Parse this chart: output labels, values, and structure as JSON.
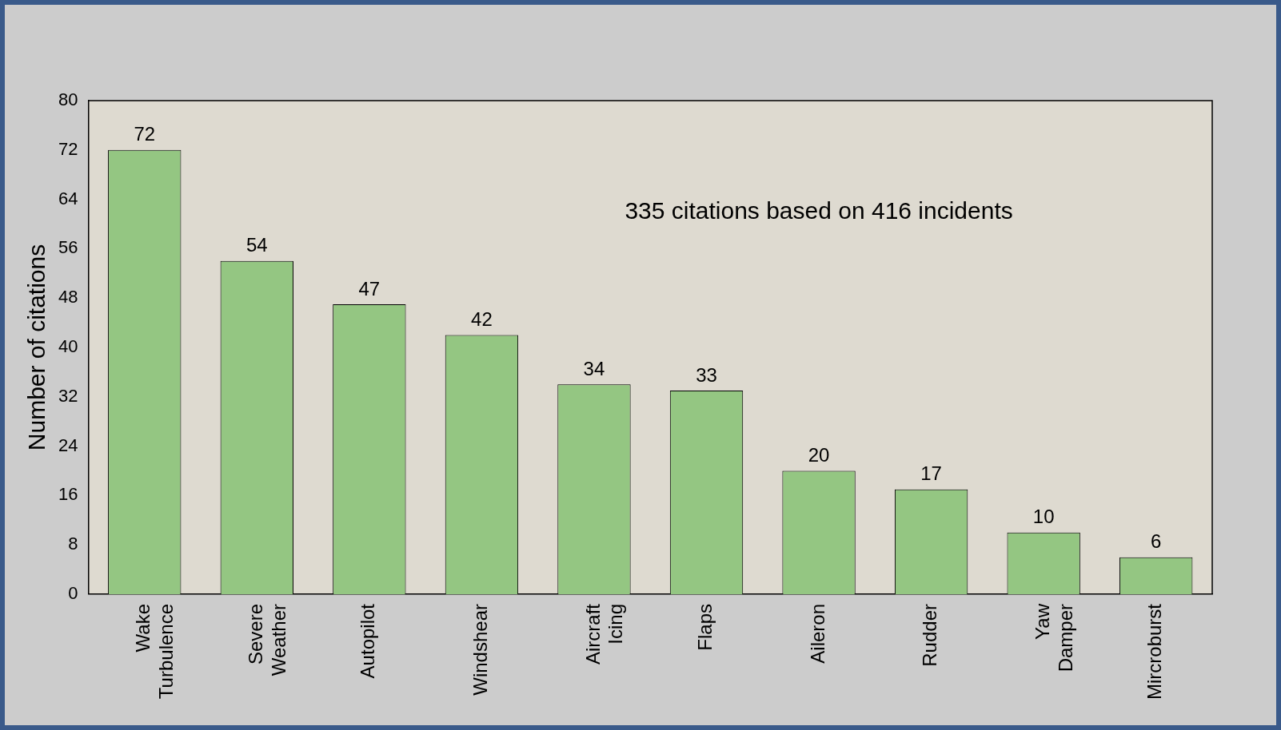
{
  "chart_data": {
    "type": "bar",
    "ylabel": "Number of citations",
    "categories": [
      "Wake Turbulence",
      "Severe Weather",
      "Autopilot",
      "Windshear",
      "Aircraft Icing",
      "Flaps",
      "Aileron",
      "Rudder",
      "Yaw Damper",
      "Mircroburst"
    ],
    "values": [
      72,
      54,
      47,
      42,
      34,
      33,
      20,
      17,
      10,
      6
    ],
    "color": "#94c682",
    "ylim": [
      0,
      80
    ],
    "yticks": [
      0,
      8,
      16,
      24,
      32,
      40,
      48,
      56,
      64,
      72,
      80
    ],
    "grid": false,
    "legend": false,
    "data_labels": true,
    "annotations": [
      "335 citations based on 416 incidents"
    ]
  }
}
